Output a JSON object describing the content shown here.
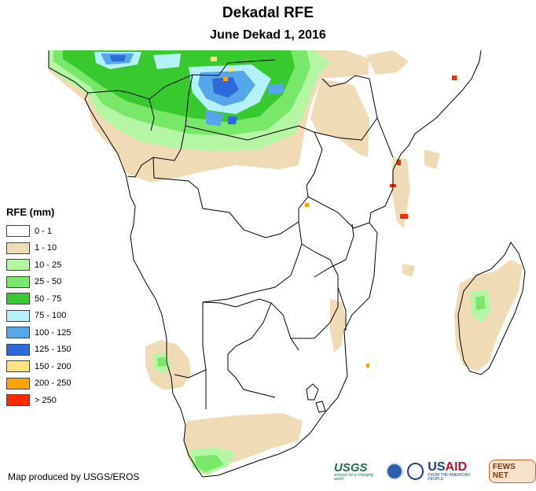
{
  "title": "Dekadal RFE",
  "subtitle": "June Dekad 1, 2016",
  "legend": {
    "title": "RFE (mm)",
    "items": [
      {
        "label": "0 - 1",
        "color": "#ffffff"
      },
      {
        "label": "1 - 10",
        "color": "#f0dbb7"
      },
      {
        "label": "10 - 25",
        "color": "#b4f6a4"
      },
      {
        "label": "25 - 50",
        "color": "#78e76a"
      },
      {
        "label": "50 - 75",
        "color": "#37c92e"
      },
      {
        "label": "75 - 100",
        "color": "#b3f1fb"
      },
      {
        "label": "100 - 125",
        "color": "#56a6ea"
      },
      {
        "label": "125 - 150",
        "color": "#2c6ad9"
      },
      {
        "label": "150 - 200",
        "color": "#fee27d"
      },
      {
        "label": "200 - 250",
        "color": "#ffa400"
      },
      {
        "label": "> 250",
        "color": "#ff2900"
      }
    ]
  },
  "credit": "Map produced by USGS/EROS",
  "logos": {
    "usgs": "USGS",
    "usgs_tagline": "science for a changing world",
    "usaid_prefix": "US",
    "usaid_suffix": "AID",
    "usaid_tagline": "FROM THE AMERICAN PEOPLE",
    "fews": "FEWS NET"
  }
}
